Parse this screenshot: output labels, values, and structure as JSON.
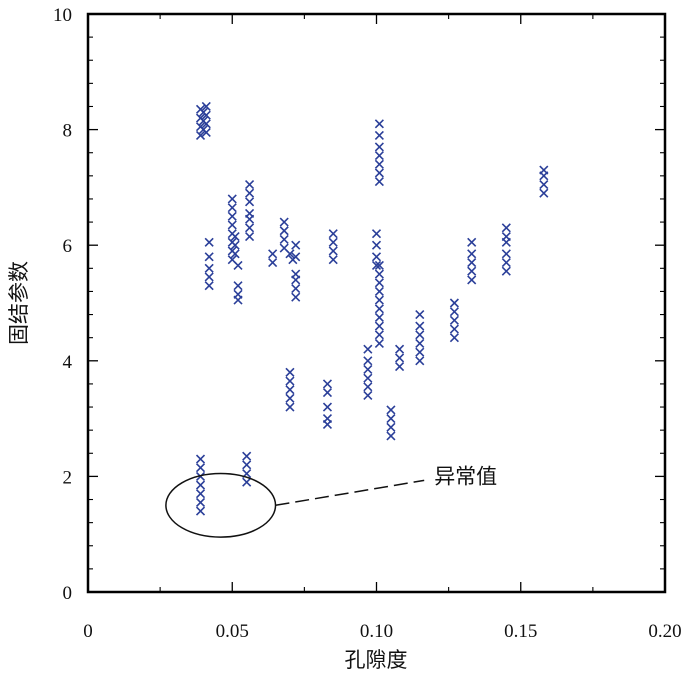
{
  "chart_data": {
    "type": "scatter",
    "title": "",
    "xlabel": "孔隙度",
    "ylabel": "固结参数",
    "xlim": [
      0,
      0.2
    ],
    "ylim": [
      0,
      10
    ],
    "xticks": [
      {
        "value": 0,
        "label": "0"
      },
      {
        "value": 0.05,
        "label": "0.05"
      },
      {
        "value": 0.1,
        "label": "0.10"
      },
      {
        "value": 0.15,
        "label": "0.15"
      },
      {
        "value": 0.2,
        "label": "0.20"
      }
    ],
    "yticks": [
      {
        "value": 0,
        "label": "0"
      },
      {
        "value": 2,
        "label": "2"
      },
      {
        "value": 4,
        "label": "4"
      },
      {
        "value": 6,
        "label": "6"
      },
      {
        "value": 8,
        "label": "8"
      },
      {
        "value": 10,
        "label": "10"
      }
    ],
    "grid": false,
    "marker": "x",
    "marker_color": "#2b3f99",
    "annotation": {
      "text": "异常值",
      "ellipse_center": [
        0.046,
        1.5
      ],
      "ellipse_radius": [
        0.019,
        0.55
      ],
      "label_at": [
        0.12,
        2.0
      ]
    },
    "series": [
      {
        "points": [
          [
            0.039,
            1.4
          ],
          [
            0.039,
            1.55
          ],
          [
            0.039,
            1.7
          ],
          [
            0.039,
            1.85
          ],
          [
            0.039,
            2.0
          ],
          [
            0.039,
            2.15
          ],
          [
            0.039,
            2.3
          ],
          [
            0.055,
            1.9
          ],
          [
            0.055,
            2.05
          ],
          [
            0.055,
            2.2
          ],
          [
            0.055,
            2.35
          ],
          [
            0.039,
            7.9
          ],
          [
            0.039,
            8.05
          ],
          [
            0.039,
            8.2
          ],
          [
            0.039,
            8.35
          ],
          [
            0.04,
            8.0
          ],
          [
            0.04,
            8.15
          ],
          [
            0.04,
            8.3
          ],
          [
            0.041,
            7.95
          ],
          [
            0.041,
            8.1
          ],
          [
            0.041,
            8.25
          ],
          [
            0.041,
            8.4
          ],
          [
            0.042,
            5.3
          ],
          [
            0.042,
            5.45
          ],
          [
            0.042,
            5.6
          ],
          [
            0.042,
            5.8
          ],
          [
            0.042,
            6.05
          ],
          [
            0.05,
            5.75
          ],
          [
            0.05,
            5.9
          ],
          [
            0.05,
            6.05
          ],
          [
            0.05,
            6.2
          ],
          [
            0.05,
            6.35
          ],
          [
            0.05,
            6.5
          ],
          [
            0.05,
            6.65
          ],
          [
            0.05,
            6.8
          ],
          [
            0.051,
            5.85
          ],
          [
            0.051,
            6.0
          ],
          [
            0.051,
            6.15
          ],
          [
            0.052,
            5.65
          ],
          [
            0.052,
            5.05
          ],
          [
            0.052,
            5.15
          ],
          [
            0.052,
            5.3
          ],
          [
            0.056,
            6.15
          ],
          [
            0.056,
            6.3
          ],
          [
            0.056,
            6.45
          ],
          [
            0.056,
            6.55
          ],
          [
            0.056,
            6.75
          ],
          [
            0.056,
            6.9
          ],
          [
            0.056,
            7.05
          ],
          [
            0.064,
            5.7
          ],
          [
            0.064,
            5.85
          ],
          [
            0.068,
            5.95
          ],
          [
            0.068,
            6.1
          ],
          [
            0.068,
            6.25
          ],
          [
            0.068,
            6.4
          ],
          [
            0.07,
            5.85
          ],
          [
            0.071,
            5.75
          ],
          [
            0.072,
            5.8
          ],
          [
            0.072,
            6.0
          ],
          [
            0.072,
            5.1
          ],
          [
            0.072,
            5.25
          ],
          [
            0.072,
            5.4
          ],
          [
            0.072,
            5.5
          ],
          [
            0.07,
            3.2
          ],
          [
            0.07,
            3.35
          ],
          [
            0.07,
            3.5
          ],
          [
            0.07,
            3.65
          ],
          [
            0.07,
            3.8
          ],
          [
            0.083,
            2.9
          ],
          [
            0.083,
            3.0
          ],
          [
            0.083,
            3.2
          ],
          [
            0.083,
            3.45
          ],
          [
            0.083,
            3.6
          ],
          [
            0.085,
            5.75
          ],
          [
            0.085,
            5.9
          ],
          [
            0.085,
            6.05
          ],
          [
            0.085,
            6.2
          ],
          [
            0.097,
            3.4
          ],
          [
            0.097,
            3.55
          ],
          [
            0.097,
            3.7
          ],
          [
            0.097,
            3.85
          ],
          [
            0.097,
            4.0
          ],
          [
            0.097,
            4.2
          ],
          [
            0.1,
            5.65
          ],
          [
            0.1,
            5.8
          ],
          [
            0.1,
            6.0
          ],
          [
            0.1,
            6.2
          ],
          [
            0.101,
            4.3
          ],
          [
            0.101,
            4.45
          ],
          [
            0.101,
            4.6
          ],
          [
            0.101,
            4.75
          ],
          [
            0.101,
            4.9
          ],
          [
            0.101,
            5.05
          ],
          [
            0.101,
            5.2
          ],
          [
            0.101,
            5.35
          ],
          [
            0.101,
            5.5
          ],
          [
            0.101,
            5.65
          ],
          [
            0.101,
            7.1
          ],
          [
            0.101,
            7.25
          ],
          [
            0.101,
            7.4
          ],
          [
            0.101,
            7.55
          ],
          [
            0.101,
            7.7
          ],
          [
            0.101,
            7.9
          ],
          [
            0.101,
            8.1
          ],
          [
            0.105,
            2.7
          ],
          [
            0.105,
            2.85
          ],
          [
            0.105,
            3.0
          ],
          [
            0.105,
            3.15
          ],
          [
            0.108,
            3.9
          ],
          [
            0.108,
            4.05
          ],
          [
            0.108,
            4.2
          ],
          [
            0.115,
            4.0
          ],
          [
            0.115,
            4.15
          ],
          [
            0.115,
            4.3
          ],
          [
            0.115,
            4.45
          ],
          [
            0.115,
            4.6
          ],
          [
            0.115,
            4.8
          ],
          [
            0.127,
            4.4
          ],
          [
            0.127,
            4.55
          ],
          [
            0.127,
            4.7
          ],
          [
            0.127,
            4.85
          ],
          [
            0.127,
            5.0
          ],
          [
            0.133,
            5.4
          ],
          [
            0.133,
            5.55
          ],
          [
            0.133,
            5.7
          ],
          [
            0.133,
            5.85
          ],
          [
            0.133,
            6.05
          ],
          [
            0.145,
            5.55
          ],
          [
            0.145,
            5.7
          ],
          [
            0.145,
            5.85
          ],
          [
            0.145,
            6.05
          ],
          [
            0.145,
            6.15
          ],
          [
            0.145,
            6.3
          ],
          [
            0.158,
            6.9
          ],
          [
            0.158,
            7.05
          ],
          [
            0.158,
            7.2
          ],
          [
            0.158,
            7.3
          ]
        ]
      }
    ]
  }
}
